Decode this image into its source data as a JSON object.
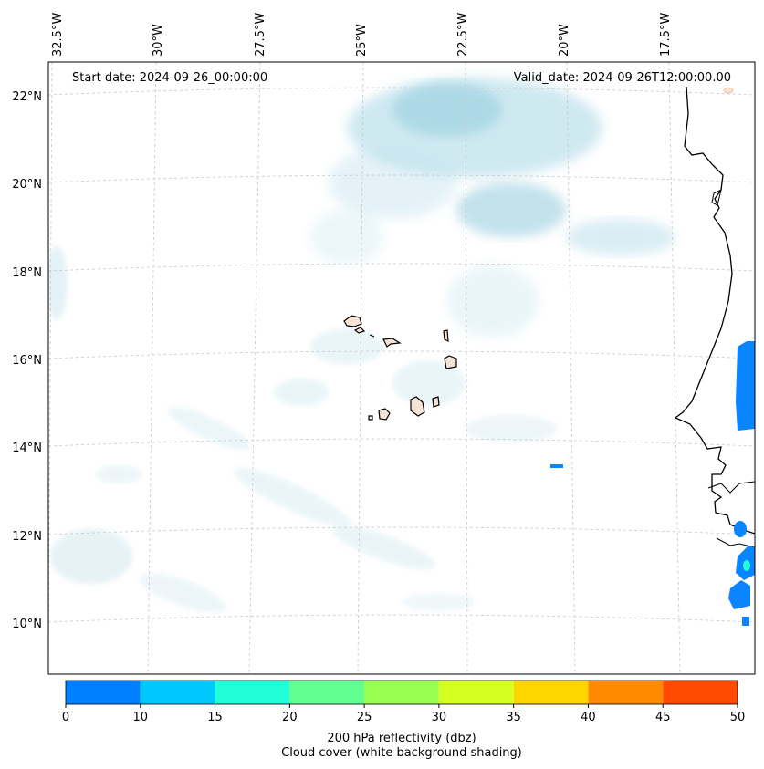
{
  "header": {
    "start_date": "Start date: 2024-09-26_00:00:00",
    "valid_date": "Valid_date: 2024-09-26T12:00:00.00"
  },
  "longitude_labels": [
    "32.5°W",
    "30°W",
    "27.5°W",
    "25°W",
    "22.5°W",
    "20°W",
    "17.5°W"
  ],
  "latitude_labels": [
    "22°N",
    "20°N",
    "18°N",
    "16°N",
    "14°N",
    "12°N",
    "10°N"
  ],
  "colorbar": {
    "ticks": [
      "0",
      "10",
      "15",
      "20",
      "25",
      "30",
      "35",
      "40",
      "45",
      "50"
    ],
    "colors": [
      "#0080ff",
      "#00c8ff",
      "#20ffd8",
      "#60ff90",
      "#98ff50",
      "#d4ff20",
      "#ffd500",
      "#ff8a00",
      "#ff4a00"
    ],
    "label": "200 hPa reflectivity (dbz)",
    "sublabel": "Cloud cover (white background shading)"
  },
  "colors": {
    "cloud": "#a9d8e6",
    "land_fill": "#f6e3d5",
    "reflectivity": "#0a84ff",
    "grid": "#c8c8c8"
  }
}
